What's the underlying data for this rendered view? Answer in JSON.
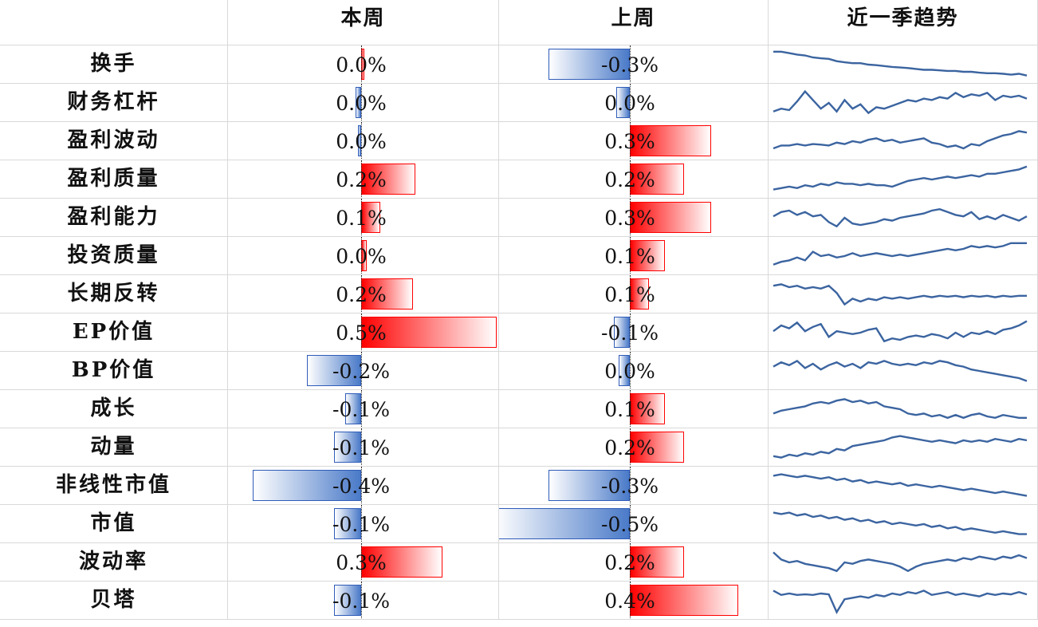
{
  "headers": {
    "name": "",
    "this_week": "本周",
    "last_week": "上周",
    "trend": "近一季趋势"
  },
  "colors": {
    "positive": "#ff0000",
    "negative": "#4a7ac8",
    "sparkline": "#3b64a0",
    "grid": "#d9d9d9"
  },
  "chart_data": {
    "type": "table",
    "columns": [
      "本周",
      "上周",
      "近一季趋势"
    ],
    "bar_range_pct": [
      -0.5,
      0.5
    ],
    "rows": [
      {
        "name": "换手",
        "this_week": 0.0,
        "this_week_label": "0.0%",
        "last_week": -0.3,
        "last_week_label": "-0.3%",
        "trend": [
          0.95,
          0.95,
          0.9,
          0.85,
          0.82,
          0.75,
          0.72,
          0.7,
          0.62,
          0.58,
          0.55,
          0.55,
          0.5,
          0.48,
          0.45,
          0.42,
          0.4,
          0.38,
          0.35,
          0.32,
          0.32,
          0.3,
          0.28,
          0.28,
          0.25,
          0.25,
          0.22,
          0.2,
          0.2,
          0.18,
          0.15,
          0.18,
          0.12
        ]
      },
      {
        "name": "财务杠杆",
        "this_week": -0.02,
        "this_week_label": "0.0%",
        "last_week": -0.05,
        "last_week_label": "0.0%",
        "trend": [
          0.2,
          0.3,
          0.25,
          0.55,
          0.9,
          0.6,
          0.3,
          0.5,
          0.2,
          0.6,
          0.3,
          0.45,
          0.15,
          0.35,
          0.3,
          0.4,
          0.5,
          0.6,
          0.55,
          0.65,
          0.6,
          0.7,
          0.65,
          0.85,
          0.7,
          0.8,
          0.75,
          0.85,
          0.6,
          0.75,
          0.7,
          0.75,
          0.65
        ]
      },
      {
        "name": "盈利波动",
        "this_week": -0.01,
        "this_week_label": "0.0%",
        "last_week": 0.3,
        "last_week_label": "0.3%",
        "trend": [
          0.25,
          0.35,
          0.35,
          0.4,
          0.35,
          0.4,
          0.38,
          0.35,
          0.45,
          0.4,
          0.5,
          0.45,
          0.55,
          0.6,
          0.5,
          0.55,
          0.45,
          0.5,
          0.55,
          0.6,
          0.45,
          0.4,
          0.3,
          0.35,
          0.25,
          0.4,
          0.35,
          0.5,
          0.6,
          0.7,
          0.75,
          0.85,
          0.8
        ]
      },
      {
        "name": "盈利质量",
        "this_week": 0.2,
        "this_week_label": "0.2%",
        "last_week": 0.2,
        "last_week_label": "0.2%",
        "trend": [
          0.15,
          0.2,
          0.25,
          0.2,
          0.3,
          0.25,
          0.35,
          0.3,
          0.4,
          0.35,
          0.35,
          0.3,
          0.35,
          0.3,
          0.3,
          0.25,
          0.35,
          0.45,
          0.5,
          0.55,
          0.5,
          0.55,
          0.6,
          0.55,
          0.6,
          0.65,
          0.6,
          0.7,
          0.7,
          0.75,
          0.8,
          0.85,
          0.95
        ]
      },
      {
        "name": "盈利能力",
        "this_week": 0.07,
        "this_week_label": "0.1%",
        "last_week": 0.3,
        "last_week_label": "0.3%",
        "trend": [
          0.55,
          0.7,
          0.75,
          0.6,
          0.7,
          0.55,
          0.6,
          0.35,
          0.2,
          0.5,
          0.3,
          0.25,
          0.3,
          0.35,
          0.45,
          0.4,
          0.5,
          0.55,
          0.6,
          0.65,
          0.75,
          0.8,
          0.7,
          0.6,
          0.55,
          0.7,
          0.45,
          0.55,
          0.45,
          0.6,
          0.5,
          0.4,
          0.55
        ]
      },
      {
        "name": "投资质量",
        "this_week": 0.02,
        "this_week_label": "0.0%",
        "last_week": 0.13,
        "last_week_label": "0.1%",
        "trend": [
          0.2,
          0.3,
          0.35,
          0.45,
          0.35,
          0.65,
          0.5,
          0.55,
          0.45,
          0.5,
          0.6,
          0.5,
          0.55,
          0.6,
          0.55,
          0.5,
          0.55,
          0.5,
          0.55,
          0.6,
          0.65,
          0.7,
          0.75,
          0.7,
          0.75,
          0.85,
          0.8,
          0.85,
          0.8,
          0.85,
          0.95,
          0.95,
          0.95
        ]
      },
      {
        "name": "长期反转",
        "this_week": 0.19,
        "this_week_label": "0.2%",
        "last_week": 0.07,
        "last_week_label": "0.1%",
        "trend": [
          0.8,
          0.85,
          0.75,
          0.8,
          0.7,
          0.75,
          0.7,
          0.8,
          0.55,
          0.15,
          0.35,
          0.25,
          0.35,
          0.3,
          0.4,
          0.35,
          0.4,
          0.35,
          0.4,
          0.45,
          0.4,
          0.45,
          0.42,
          0.45,
          0.4,
          0.45,
          0.42,
          0.45,
          0.4,
          0.45,
          0.42,
          0.45,
          0.45
        ]
      },
      {
        "name": "EP价值",
        "this_week": 0.5,
        "this_week_label": "0.5%",
        "last_week": -0.06,
        "last_week_label": "-0.1%",
        "trend": [
          0.55,
          0.75,
          0.65,
          0.85,
          0.55,
          0.7,
          0.8,
          0.35,
          0.55,
          0.5,
          0.45,
          0.5,
          0.6,
          0.65,
          0.2,
          0.3,
          0.25,
          0.35,
          0.4,
          0.35,
          0.45,
          0.4,
          0.3,
          0.5,
          0.35,
          0.5,
          0.45,
          0.55,
          0.45,
          0.6,
          0.65,
          0.75,
          0.9
        ]
      },
      {
        "name": "BP价值",
        "this_week": -0.2,
        "this_week_label": "-0.2%",
        "last_week": -0.04,
        "last_week_label": "0.0%",
        "trend": [
          0.65,
          0.8,
          0.7,
          0.85,
          0.6,
          0.75,
          0.55,
          0.7,
          0.8,
          0.65,
          0.75,
          0.6,
          0.8,
          0.75,
          0.85,
          0.75,
          0.7,
          0.75,
          0.7,
          0.8,
          0.75,
          0.85,
          0.8,
          0.7,
          0.65,
          0.55,
          0.5,
          0.45,
          0.4,
          0.35,
          0.3,
          0.25,
          0.15
        ]
      },
      {
        "name": "成长",
        "this_week": -0.06,
        "this_week_label": "-0.1%",
        "last_week": 0.13,
        "last_week_label": "0.1%",
        "trend": [
          0.35,
          0.45,
          0.5,
          0.55,
          0.6,
          0.7,
          0.75,
          0.7,
          0.8,
          0.85,
          0.75,
          0.8,
          0.7,
          0.75,
          0.6,
          0.55,
          0.5,
          0.35,
          0.3,
          0.35,
          0.25,
          0.3,
          0.2,
          0.3,
          0.2,
          0.3,
          0.35,
          0.25,
          0.2,
          0.3,
          0.25,
          0.2,
          0.2
        ]
      },
      {
        "name": "动量",
        "this_week": -0.1,
        "this_week_label": "-0.1%",
        "last_week": 0.2,
        "last_week_label": "0.2%",
        "trend": [
          0.2,
          0.15,
          0.25,
          0.2,
          0.3,
          0.25,
          0.35,
          0.3,
          0.45,
          0.4,
          0.55,
          0.6,
          0.65,
          0.7,
          0.75,
          0.85,
          0.9,
          0.85,
          0.8,
          0.75,
          0.7,
          0.75,
          0.7,
          0.65,
          0.75,
          0.7,
          0.75,
          0.7,
          0.8,
          0.75,
          0.7,
          0.8,
          0.75
        ]
      },
      {
        "name": "非线性市值",
        "this_week": -0.4,
        "this_week_label": "-0.4%",
        "last_week": -0.3,
        "last_week_label": "-0.3%",
        "trend": [
          0.85,
          0.9,
          0.85,
          0.8,
          0.85,
          0.8,
          0.75,
          0.8,
          0.7,
          0.75,
          0.65,
          0.7,
          0.6,
          0.65,
          0.6,
          0.55,
          0.6,
          0.5,
          0.55,
          0.5,
          0.45,
          0.5,
          0.45,
          0.4,
          0.35,
          0.4,
          0.35,
          0.3,
          0.25,
          0.3,
          0.25,
          0.2,
          0.15
        ]
      },
      {
        "name": "市值",
        "this_week": -0.1,
        "this_week_label": "-0.1%",
        "last_week": -0.5,
        "last_week_label": "-0.5%",
        "trend": [
          0.9,
          0.85,
          0.9,
          0.8,
          0.85,
          0.75,
          0.8,
          0.7,
          0.75,
          0.65,
          0.7,
          0.6,
          0.65,
          0.55,
          0.6,
          0.5,
          0.55,
          0.5,
          0.45,
          0.5,
          0.4,
          0.45,
          0.35,
          0.4,
          0.3,
          0.35,
          0.3,
          0.25,
          0.2,
          0.25,
          0.2,
          0.15,
          0.15
        ]
      },
      {
        "name": "波动率",
        "this_week": 0.3,
        "this_week_label": "0.3%",
        "last_week": 0.2,
        "last_week_label": "0.2%",
        "trend": [
          0.85,
          0.6,
          0.5,
          0.55,
          0.45,
          0.4,
          0.35,
          0.3,
          0.2,
          0.5,
          0.45,
          0.55,
          0.6,
          0.55,
          0.5,
          0.45,
          0.35,
          0.2,
          0.35,
          0.45,
          0.5,
          0.55,
          0.6,
          0.55,
          0.65,
          0.6,
          0.7,
          0.65,
          0.6,
          0.7,
          0.65,
          0.75,
          0.65
        ]
      },
      {
        "name": "贝塔",
        "this_week": -0.1,
        "this_week_label": "-0.1%",
        "last_week": 0.4,
        "last_week_label": "0.4%",
        "trend": [
          0.85,
          0.7,
          0.75,
          0.7,
          0.72,
          0.7,
          0.75,
          0.72,
          0.1,
          0.55,
          0.6,
          0.65,
          0.6,
          0.7,
          0.65,
          0.75,
          0.7,
          0.8,
          0.75,
          0.85,
          0.7,
          0.75,
          0.8,
          0.7,
          0.75,
          0.7,
          0.65,
          0.75,
          0.7,
          0.75,
          0.72,
          0.8,
          0.72
        ]
      }
    ]
  }
}
